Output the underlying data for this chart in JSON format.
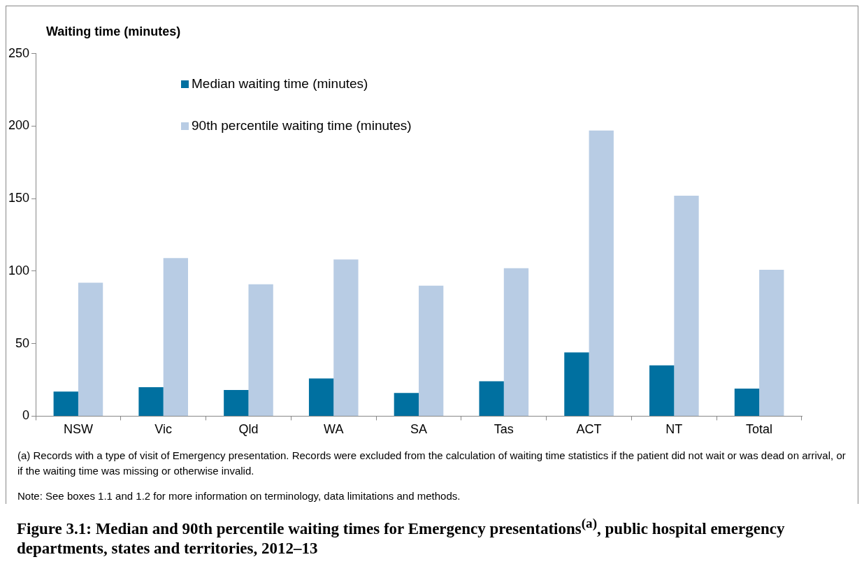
{
  "chart_data": {
    "type": "bar",
    "title": "Figure 3.1: Median and 90th percentile waiting times for Emergency presentations$^{(a)}$, public hospital emergency departments, states and territories, 2012–13",
    "ylabel": "Waiting time (minutes)",
    "categories": [
      "NSW",
      "Vic",
      "Qld",
      "WA",
      "SA",
      "Tas",
      "ACT",
      "NT",
      "Total"
    ],
    "series": [
      {
        "name": "Median waiting time (minutes)",
        "color": "#0070a0",
        "values": [
          17,
          20,
          18,
          26,
          16,
          24,
          44,
          35,
          19
        ]
      },
      {
        "name": "90th percentile waiting time (minutes)",
        "color": "#b8cce4",
        "values": [
          92,
          109,
          91,
          108,
          90,
          102,
          197,
          152,
          101
        ]
      }
    ],
    "ylim": [
      0,
      250
    ],
    "yticks": [
      0,
      50,
      100,
      150,
      200,
      250
    ],
    "grid": false,
    "legend": "top left",
    "annotations": [
      "(a)    Records with a type of visit of Emergency presentation. Records were excluded from the calculation of waiting time statistics if the patient did not wait or was dead on arrival, or if the waiting time was missing or otherwise invalid.",
      "Note: See boxes 1.1 and 1.2 for more information on terminology, data limitations and methods."
    ]
  }
}
